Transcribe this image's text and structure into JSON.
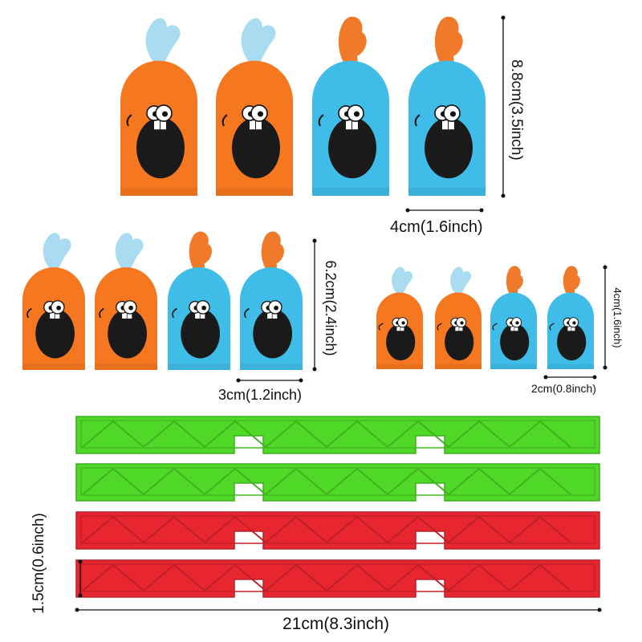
{
  "colors": {
    "orange": "#f5771f",
    "blue": "#3fbde8",
    "green": "#4fd827",
    "red": "#e8262f",
    "mouth": "#1a1a1a",
    "feather_blue": "#a9dcf0",
    "feather_orange": "#f07a2a"
  },
  "dimensions": {
    "large_height": "8.8cm(3.5inch)",
    "large_width": "4cm(1.6inch)",
    "medium_height": "6.2cm(2.4inch)",
    "medium_width": "3cm(1.2inch)",
    "small_height": "4cm(1.6inch)",
    "small_width": "2cm(0.8inch)",
    "bar_height": "1.5cm(0.6inch)",
    "bar_length": "21cm(8.3inch)"
  },
  "figure_groups": [
    {
      "size": "large",
      "figures": [
        "orange",
        "orange",
        "blue",
        "blue"
      ]
    },
    {
      "size": "medium",
      "figures": [
        "orange",
        "orange",
        "blue",
        "blue"
      ]
    },
    {
      "size": "small",
      "figures": [
        "orange",
        "orange",
        "blue",
        "blue"
      ]
    }
  ],
  "bars": [
    "green",
    "green",
    "red",
    "red"
  ]
}
